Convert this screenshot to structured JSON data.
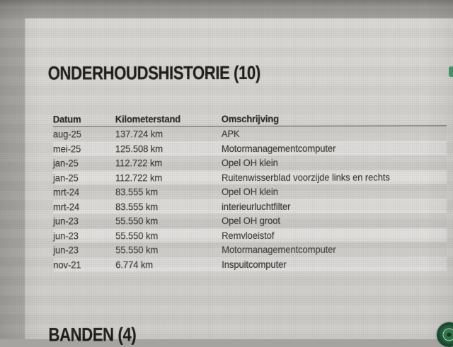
{
  "page": {
    "kind": "vehicle maintenance history webpage photographed on a monitor"
  },
  "colors": {
    "accent_green": "#4c9c74",
    "fab_green_dark": "#1d5d39",
    "card_bg": "#d5d4d1",
    "outer_bg": "#adaca9",
    "text_dark": "#1c1c18",
    "text_body": "#3b3a35"
  },
  "section": {
    "title": "ONDERHOUDSHISTORIE (10)"
  },
  "table": {
    "headers": {
      "datum": "Datum",
      "km": "Kilometerstand",
      "omschrijving": "Omschrijving"
    },
    "rows": [
      {
        "datum": "aug-25",
        "km": "137.724 km",
        "omschrijving": "APK"
      },
      {
        "datum": "mei-25",
        "km": "125.508 km",
        "omschrijving": "Motormanagementcomputer"
      },
      {
        "datum": "jan-25",
        "km": "112.722 km",
        "omschrijving": "Opel OH klein"
      },
      {
        "datum": "jan-25",
        "km": "112.722 km",
        "omschrijving": "Ruitenwisserblad voorzijde links en rechts"
      },
      {
        "datum": "mrt-24",
        "km": "83.555 km",
        "omschrijving": "Opel OH klein"
      },
      {
        "datum": "mrt-24",
        "km": "83.555 km",
        "omschrijving": "interieurluchtfilter"
      },
      {
        "datum": "jun-23",
        "km": "55.550 km",
        "omschrijving": "Opel OH groot"
      },
      {
        "datum": "jun-23",
        "km": "55.550 km",
        "omschrijving": "Remvloeistof"
      },
      {
        "datum": "jun-23",
        "km": "55.550 km",
        "omschrijving": "Motormanagementcomputer"
      },
      {
        "datum": "nov-21",
        "km": "6.774 km",
        "omschrijving": "Inspuitcomputer"
      }
    ]
  },
  "next_section": {
    "title": "BANDEN (4)"
  },
  "icons": {
    "edge_accent": "green-accent-sliver",
    "chat_fab": "green-chat-fab-icon"
  }
}
